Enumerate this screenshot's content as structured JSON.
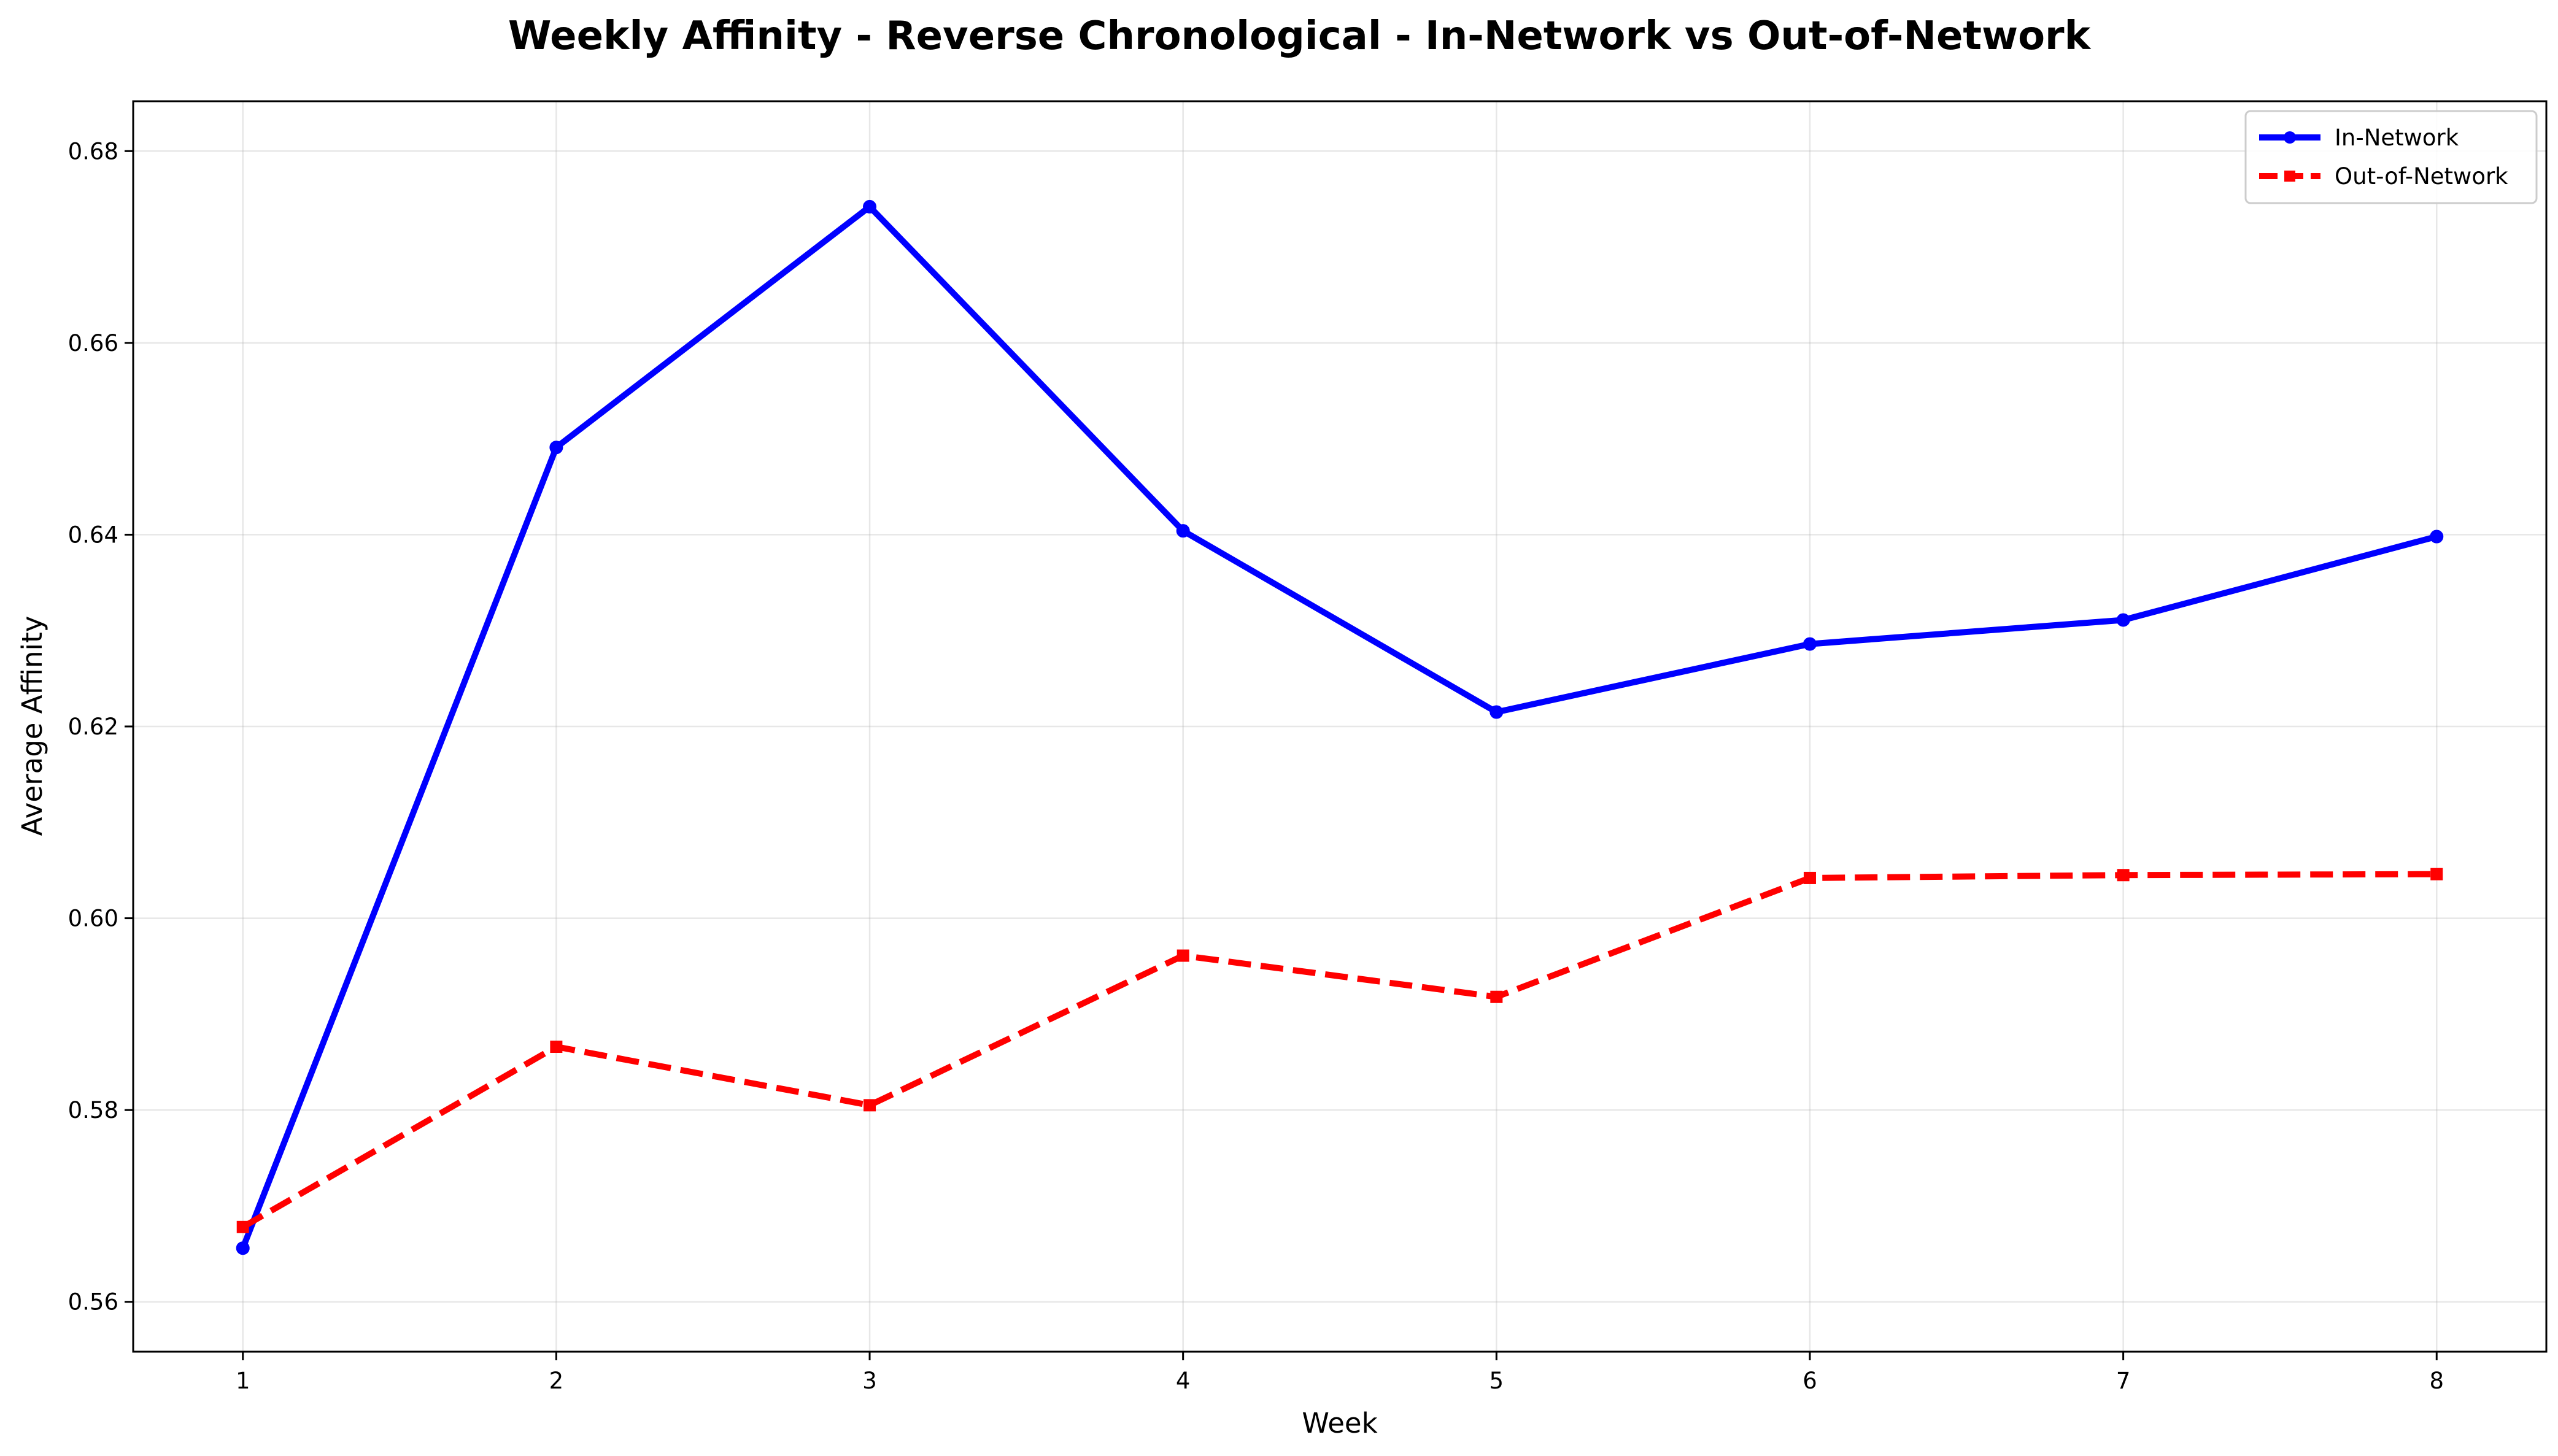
{
  "chart_data": {
    "type": "line",
    "title": "Weekly Affinity - Reverse Chronological - In-Network vs Out-of-Network",
    "xlabel": "Week",
    "ylabel": "Average Affinity",
    "x": [
      1,
      2,
      3,
      4,
      5,
      6,
      7,
      8
    ],
    "xlim": [
      0.65,
      8.35
    ],
    "ylim": [
      0.5548,
      0.6852
    ],
    "xticks": [
      1,
      2,
      3,
      4,
      5,
      6,
      7,
      8
    ],
    "yticks": [
      0.56,
      0.58,
      0.6,
      0.62,
      0.64,
      0.66,
      0.68
    ],
    "ytick_labels": [
      "0.56",
      "0.58",
      "0.60",
      "0.62",
      "0.64",
      "0.66",
      "0.68"
    ],
    "grid": true,
    "legend_position": "top-right",
    "series": [
      {
        "name": "In-Network",
        "color": "#0000ff",
        "line_style": "solid",
        "marker": "circle",
        "values": [
          0.5656,
          0.6491,
          0.6742,
          0.6404,
          0.6215,
          0.6286,
          0.6311,
          0.6398
        ]
      },
      {
        "name": "Out-of-Network",
        "color": "#ff0000",
        "line_style": "dashed",
        "marker": "square",
        "values": [
          0.5678,
          0.5866,
          0.5805,
          0.5961,
          0.5918,
          0.6042,
          0.6045,
          0.6046
        ]
      }
    ]
  }
}
